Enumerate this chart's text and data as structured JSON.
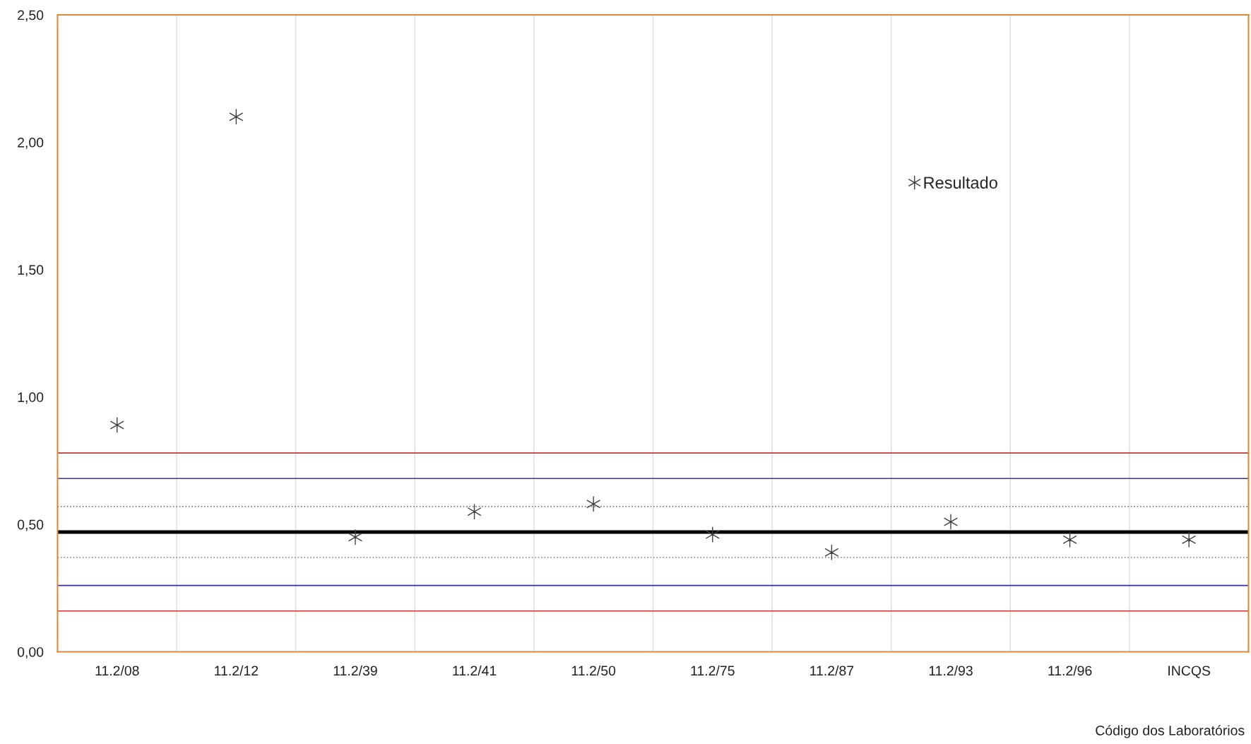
{
  "chart_data": {
    "type": "scatter",
    "xlabel": "Código dos Laboratórios",
    "categories": [
      "11.2/08",
      "11.2/12",
      "11.2/39",
      "11.2/41",
      "11.2/50",
      "11.2/75",
      "11.2/87",
      "11.2/93",
      "11.2/96",
      "INCQS"
    ],
    "series": [
      {
        "name": "Resultado",
        "color": "#404040",
        "values": [
          0.89,
          2.1,
          0.45,
          0.55,
          0.58,
          0.46,
          0.39,
          0.51,
          0.44,
          0.44
        ]
      }
    ],
    "marker": "cross",
    "ylim": [
      0,
      2.5
    ],
    "yticks": [
      {
        "value": 0,
        "label": "0,00"
      },
      {
        "value": 0.5,
        "label": "0,50"
      },
      {
        "value": 1.0,
        "label": "1,00"
      },
      {
        "value": 1.5,
        "label": "1,50"
      },
      {
        "value": 2.0,
        "label": "2,00"
      },
      {
        "value": 2.5,
        "label": "2,50"
      }
    ],
    "ref_lines": [
      {
        "axis": "y",
        "value": 0.78,
        "color": "#cc3333",
        "line_style": "solid"
      },
      {
        "axis": "y",
        "value": 0.68,
        "color": "#333399",
        "line_style": "solid"
      },
      {
        "axis": "y",
        "value": 0.57,
        "color": "#808080",
        "line_style": "dotted"
      },
      {
        "axis": "y",
        "value": 0.47,
        "color": "#000000",
        "line_style": "solid"
      },
      {
        "axis": "y",
        "value": 0.37,
        "color": "#808080",
        "line_style": "dotted"
      },
      {
        "axis": "y",
        "value": 0.26,
        "color": "#333399",
        "line_style": "solid"
      },
      {
        "axis": "y",
        "value": 0.16,
        "color": "#cc3333",
        "line_style": "solid"
      }
    ],
    "grid": "x",
    "legend": "top right"
  }
}
